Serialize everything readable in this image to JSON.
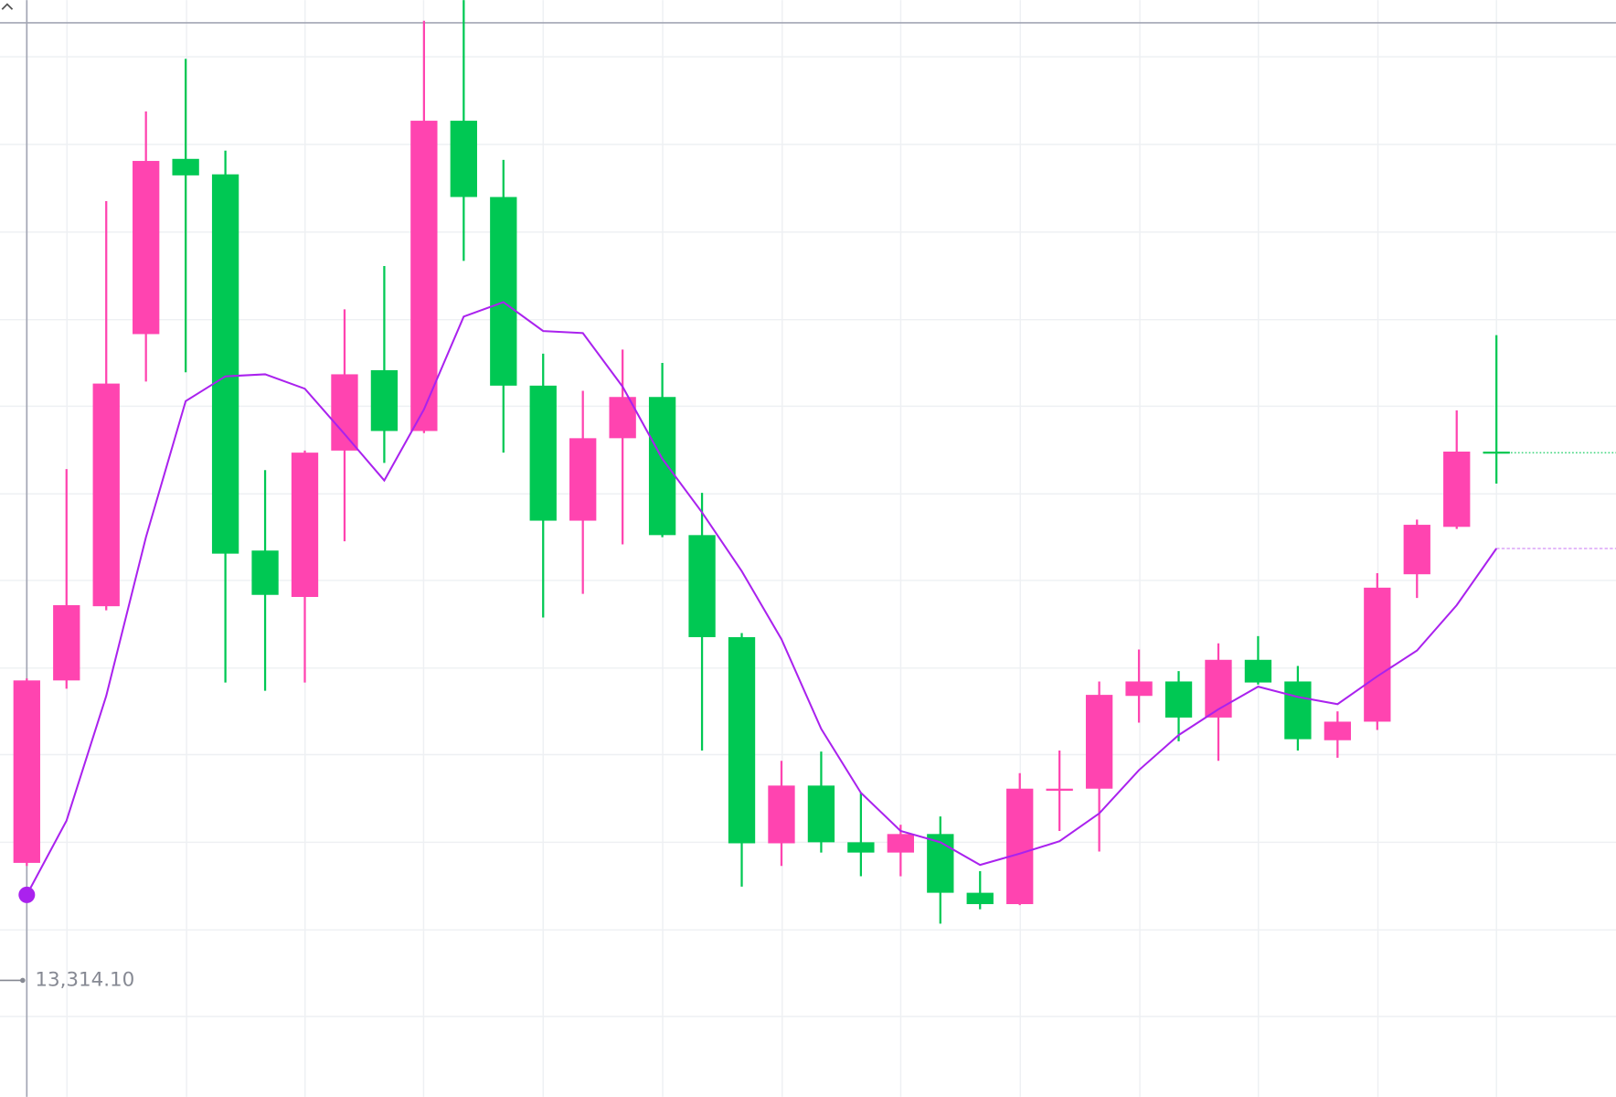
{
  "chart_data": {
    "type": "candlestick",
    "up_color": "#ff44b0",
    "down_color": "#00c853",
    "ylim": [
      13200,
      14264
    ],
    "crosshair_label": "13,314.10",
    "open": [
      13427,
      13604,
      13676,
      13940,
      14110,
      14095,
      13730,
      13685,
      13827,
      13905,
      13846,
      14147,
      14073,
      13890,
      13759,
      13839,
      13879,
      13745,
      13646,
      13446,
      13502,
      13447,
      13437,
      13455,
      13398,
      13387,
      13499,
      13499,
      13589,
      13603,
      13568,
      13624,
      13603,
      13546,
      13564,
      13707,
      13753,
      13826
    ],
    "high": [
      13606,
      13809,
      14069,
      14156,
      14207,
      14118,
      13808,
      13827,
      13964,
      14006,
      14244,
      14264,
      14109,
      13921,
      13885,
      13925,
      13912,
      13786,
      13650,
      13526,
      13535,
      13495,
      13464,
      13472,
      13419,
      13514,
      13536,
      13603,
      13634,
      13613,
      13640,
      13647,
      13618,
      13574,
      13708,
      13760,
      13866,
      13939
    ],
    "low": [
      13424,
      13596,
      13672,
      13894,
      13903,
      13602,
      13594,
      13602,
      13739,
      13815,
      13844,
      14011,
      13825,
      13665,
      13688,
      13736,
      13743,
      13536,
      13404,
      13424,
      13437,
      13414,
      13414,
      13368,
      13382,
      13386,
      13458,
      13438,
      13563,
      13545,
      13526,
      13600,
      13536,
      13529,
      13556,
      13684,
      13751,
      13795
    ],
    "close": [
      13604,
      13677,
      13892,
      14108,
      14094,
      13727,
      13687,
      13825,
      13901,
      13846,
      14147,
      14073,
      13890,
      13759,
      13839,
      13879,
      13745,
      13646,
      13446,
      13502,
      13447,
      13437,
      13455,
      13398,
      13387,
      13499,
      13499,
      13590,
      13603,
      13568,
      13624,
      13602,
      13547,
      13564,
      13694,
      13755,
      13826,
      13825
    ],
    "ma": {
      "color": "#aa22ee",
      "values": [
        13396,
        13468,
        13589,
        13743,
        13875,
        13899,
        13901,
        13887,
        13843,
        13798,
        13867,
        13957,
        13971,
        13943,
        13941,
        13889,
        13819,
        13767,
        13710,
        13644,
        13557,
        13495,
        13458,
        13447,
        13425,
        13436,
        13448,
        13475,
        13517,
        13551,
        13576,
        13598,
        13588,
        13581,
        13608,
        13633,
        13677,
        13732
      ]
    }
  }
}
